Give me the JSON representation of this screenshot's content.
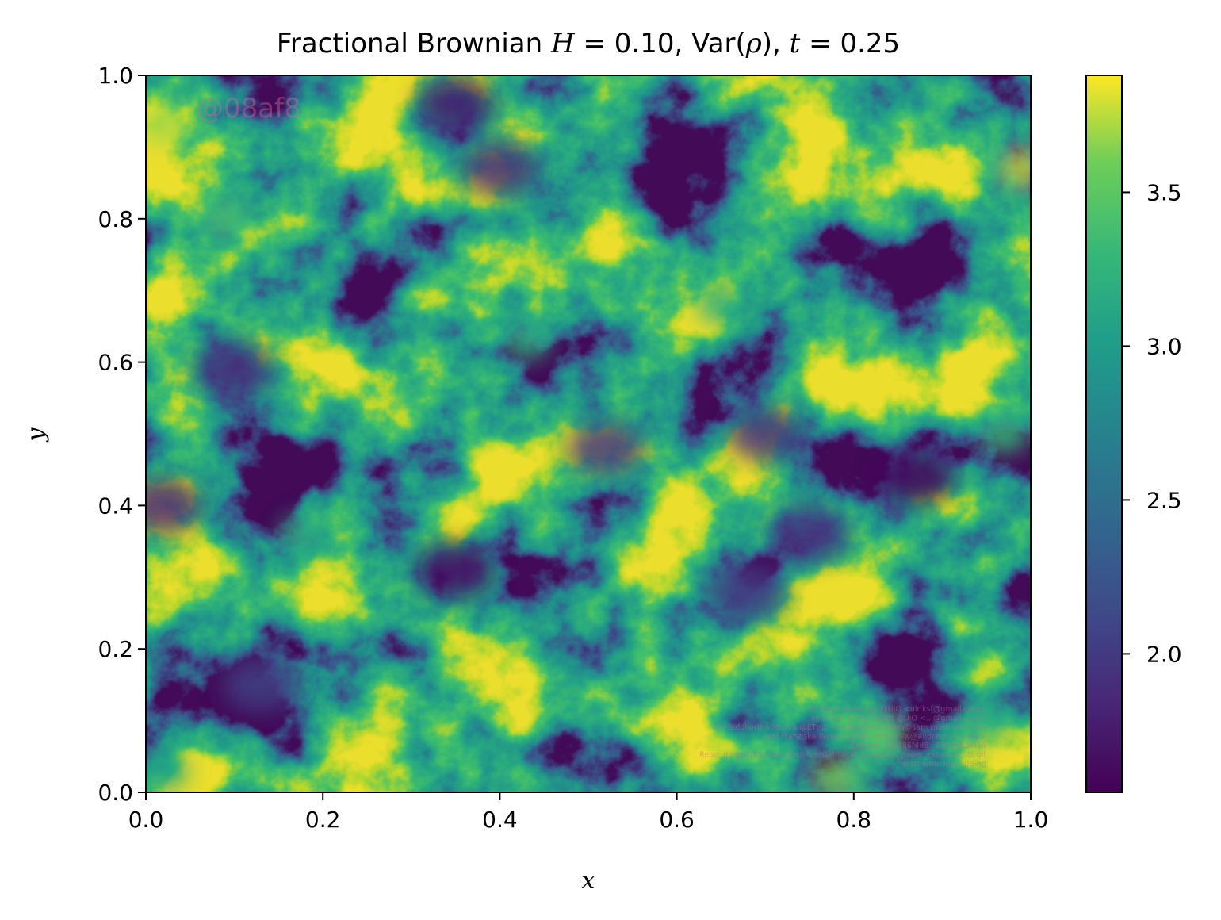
{
  "chart_data": {
    "type": "heatmap",
    "title_parts": [
      {
        "text": "Fractional Brownian ",
        "italic": false
      },
      {
        "text": "H",
        "italic": true
      },
      {
        "text": " = 0.10, Var(",
        "italic": false
      },
      {
        "text": "ρ",
        "italic": true
      },
      {
        "text": "), ",
        "italic": false
      },
      {
        "text": "t",
        "italic": true
      },
      {
        "text": " = 0.25",
        "italic": false
      }
    ],
    "xlabel": "x",
    "ylabel": "y",
    "xlim": [
      0.0,
      1.0
    ],
    "ylim": [
      0.0,
      1.0
    ],
    "xticks": [
      "0.0",
      "0.2",
      "0.4",
      "0.6",
      "0.8",
      "1.0"
    ],
    "yticks": [
      "0.0",
      "0.2",
      "0.4",
      "0.6",
      "0.8",
      "1.0"
    ],
    "colormap": "viridis",
    "colorbar": {
      "range": [
        1.55,
        3.88
      ],
      "ticks": [
        2.0,
        2.5,
        3.0,
        3.5
      ],
      "tick_labels": [
        "2.0",
        "2.5",
        "3.0",
        "3.5"
      ]
    },
    "grid": false,
    "field_summary": {
      "description_values": "noisy random field, mostly 2.0–2.9",
      "high_spots": [
        {
          "x": 0.02,
          "y": 0.93,
          "value": 3.7
        },
        {
          "x": 0.99,
          "y": 0.87,
          "value": 3.75
        },
        {
          "x": 0.09,
          "y": 0.8,
          "value": 3.4
        },
        {
          "x": 0.78,
          "y": 0.02,
          "value": 3.6
        },
        {
          "x": 0.83,
          "y": 0.08,
          "value": 3.5
        },
        {
          "x": 0.97,
          "y": 0.5,
          "value": 3.3
        },
        {
          "x": 0.43,
          "y": 0.63,
          "value": 3.2
        },
        {
          "x": 0.65,
          "y": 0.68,
          "value": 3.2
        },
        {
          "x": 0.18,
          "y": 0.36,
          "value": 3.2
        },
        {
          "x": 0.95,
          "y": 0.1,
          "value": 3.2
        },
        {
          "x": 0.02,
          "y": 0.03,
          "value": 3.1
        }
      ],
      "low_spots": [
        {
          "x": 0.35,
          "y": 0.31,
          "value": 1.65
        },
        {
          "x": 0.87,
          "y": 0.44,
          "value": 1.6
        },
        {
          "x": 0.35,
          "y": 0.96,
          "value": 1.75
        },
        {
          "x": 0.4,
          "y": 0.87,
          "value": 1.9
        },
        {
          "x": 0.02,
          "y": 0.4,
          "value": 1.85
        },
        {
          "x": 0.1,
          "y": 0.59,
          "value": 1.9
        },
        {
          "x": 0.7,
          "y": 0.5,
          "value": 1.95
        },
        {
          "x": 0.52,
          "y": 0.48,
          "value": 2.0
        },
        {
          "x": 0.75,
          "y": 0.36,
          "value": 1.95
        },
        {
          "x": 0.68,
          "y": 0.28,
          "value": 2.0
        },
        {
          "x": 0.13,
          "y": 0.15,
          "value": 2.05
        }
      ]
    }
  },
  "watermark": {
    "hash_tag": "@08af8",
    "lines": [
      "by Kjetil Olsen Lye @UiO <ulriksf@gmail.com>",
      "and Ulrik S. Fjordholm @UiO <...@gmail.com>",
      "and Siddhartha Mishra @ETHZ <siddhartha.mishra@sam.math.ethz.ch>",
      "and Franziska Weber @CMU <franzisw@andrew.cmu.edu>",
      "Commit: 08af86f4d8...58315b3af19",
      "Repo: git@github.com:kjetil-lye/statistical_measures_paper_experiments.git",
      "Hostname: login-08-ng"
    ]
  }
}
